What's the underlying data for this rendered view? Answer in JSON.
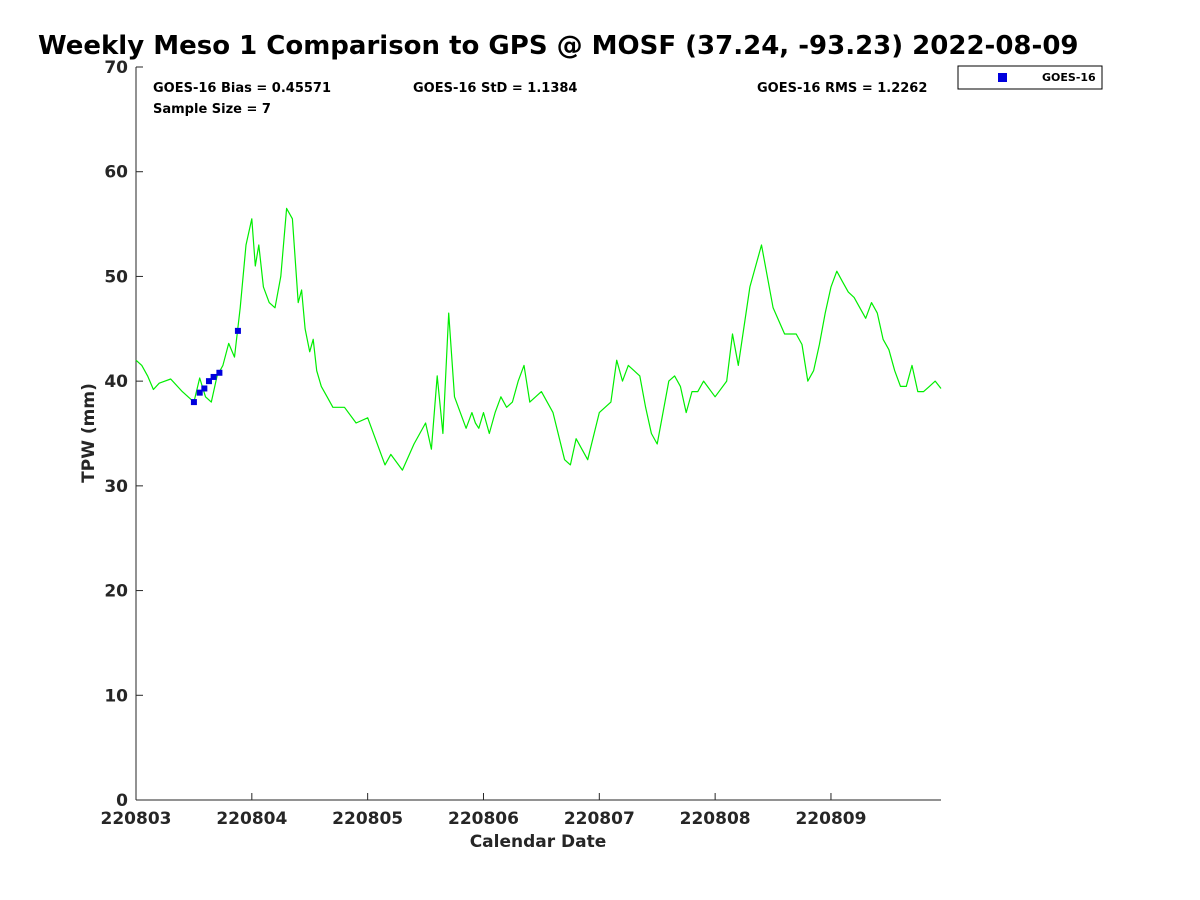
{
  "chart_data": {
    "type": "line",
    "title": "Weekly Meso 1 Comparison to GPS @ MOSF (37.24, -93.23) 2022-08-09",
    "xlabel": "Calendar Date",
    "ylabel": "TPW (mm)",
    "xlim": [
      0,
      6.95
    ],
    "ylim": [
      0,
      70
    ],
    "x_ticks": [
      {
        "pos": 0,
        "label": "220803"
      },
      {
        "pos": 1,
        "label": "220804"
      },
      {
        "pos": 2,
        "label": "220805"
      },
      {
        "pos": 3,
        "label": "220806"
      },
      {
        "pos": 4,
        "label": "220807"
      },
      {
        "pos": 5,
        "label": "220808"
      },
      {
        "pos": 6,
        "label": "220809"
      }
    ],
    "y_ticks": [
      0,
      10,
      20,
      30,
      40,
      50,
      60,
      70
    ],
    "grid": false,
    "stats": {
      "bias": "GOES-16 Bias = 0.45571",
      "std": "GOES-16 StD = 1.1384",
      "rms": "GOES-16 RMS = 1.2262",
      "sample": "Sample Size = 7"
    },
    "legend": {
      "placement": "top-right",
      "entries": [
        {
          "name": "GOES-16",
          "color": "#0000dd"
        }
      ]
    },
    "series": [
      {
        "name": "GPS",
        "style": "line",
        "color": "#00ee00",
        "x": [
          0.0,
          0.05,
          0.1,
          0.15,
          0.2,
          0.3,
          0.4,
          0.5,
          0.55,
          0.6,
          0.65,
          0.7,
          0.75,
          0.8,
          0.85,
          0.9,
          0.95,
          1.0,
          1.03,
          1.06,
          1.1,
          1.15,
          1.2,
          1.25,
          1.3,
          1.35,
          1.4,
          1.43,
          1.46,
          1.5,
          1.53,
          1.56,
          1.6,
          1.65,
          1.7,
          1.8,
          1.9,
          2.0,
          2.1,
          2.15,
          2.2,
          2.3,
          2.4,
          2.5,
          2.55,
          2.6,
          2.65,
          2.7,
          2.75,
          2.8,
          2.85,
          2.9,
          2.93,
          2.96,
          3.0,
          3.05,
          3.1,
          3.15,
          3.2,
          3.25,
          3.3,
          3.35,
          3.4,
          3.5,
          3.6,
          3.7,
          3.75,
          3.8,
          3.85,
          3.9,
          4.0,
          4.1,
          4.15,
          4.2,
          4.25,
          4.3,
          4.35,
          4.4,
          4.45,
          4.5,
          4.6,
          4.65,
          4.7,
          4.75,
          4.8,
          4.85,
          4.9,
          5.0,
          5.1,
          5.15,
          5.2,
          5.3,
          5.4,
          5.5,
          5.6,
          5.7,
          5.75,
          5.8,
          5.85,
          5.9,
          5.95,
          6.0,
          6.05,
          6.1,
          6.15,
          6.2,
          6.3,
          6.35,
          6.4,
          6.45,
          6.5,
          6.55,
          6.6,
          6.65,
          6.7,
          6.75,
          6.8,
          6.85,
          6.9,
          6.95
        ],
        "y": [
          42.0,
          41.5,
          40.5,
          39.2,
          39.8,
          40.2,
          39.0,
          38.0,
          40.3,
          38.5,
          38.0,
          40.5,
          41.5,
          43.6,
          42.3,
          47.0,
          53.0,
          55.5,
          51.0,
          53.0,
          49.0,
          47.5,
          47.0,
          50.0,
          56.5,
          55.5,
          47.5,
          48.7,
          45.0,
          42.8,
          44.0,
          41.0,
          39.5,
          38.5,
          37.5,
          37.5,
          36.0,
          36.5,
          33.5,
          32.0,
          33.0,
          31.5,
          34.0,
          36.0,
          33.5,
          40.5,
          35.0,
          46.5,
          38.5,
          37.0,
          35.5,
          37.0,
          36.0,
          35.5,
          37.0,
          35.0,
          37.0,
          38.5,
          37.5,
          38.0,
          40.0,
          41.5,
          38.0,
          39.0,
          37.0,
          32.5,
          32.0,
          34.5,
          33.5,
          32.5,
          37.0,
          38.0,
          42.0,
          40.0,
          41.5,
          41.0,
          40.5,
          37.5,
          35.0,
          34.0,
          40.0,
          40.5,
          39.5,
          37.0,
          39.0,
          39.0,
          40.0,
          38.5,
          40.0,
          44.5,
          41.5,
          49.0,
          53.0,
          47.0,
          44.5,
          44.5,
          43.5,
          40.0,
          41.0,
          43.5,
          46.5,
          49.0,
          50.5,
          49.5,
          48.5,
          48.0,
          46.0,
          47.5,
          46.5,
          44.0,
          43.0,
          41.0,
          39.5,
          39.5,
          41.5,
          39.0,
          39.0,
          39.5,
          40.0,
          39.3
        ]
      },
      {
        "name": "GOES-16",
        "style": "marker",
        "color": "#0000dd",
        "x": [
          0.5,
          0.55,
          0.59,
          0.63,
          0.67,
          0.72,
          0.88
        ],
        "y": [
          38.0,
          38.9,
          39.3,
          40.0,
          40.4,
          40.8,
          44.8
        ]
      }
    ]
  }
}
